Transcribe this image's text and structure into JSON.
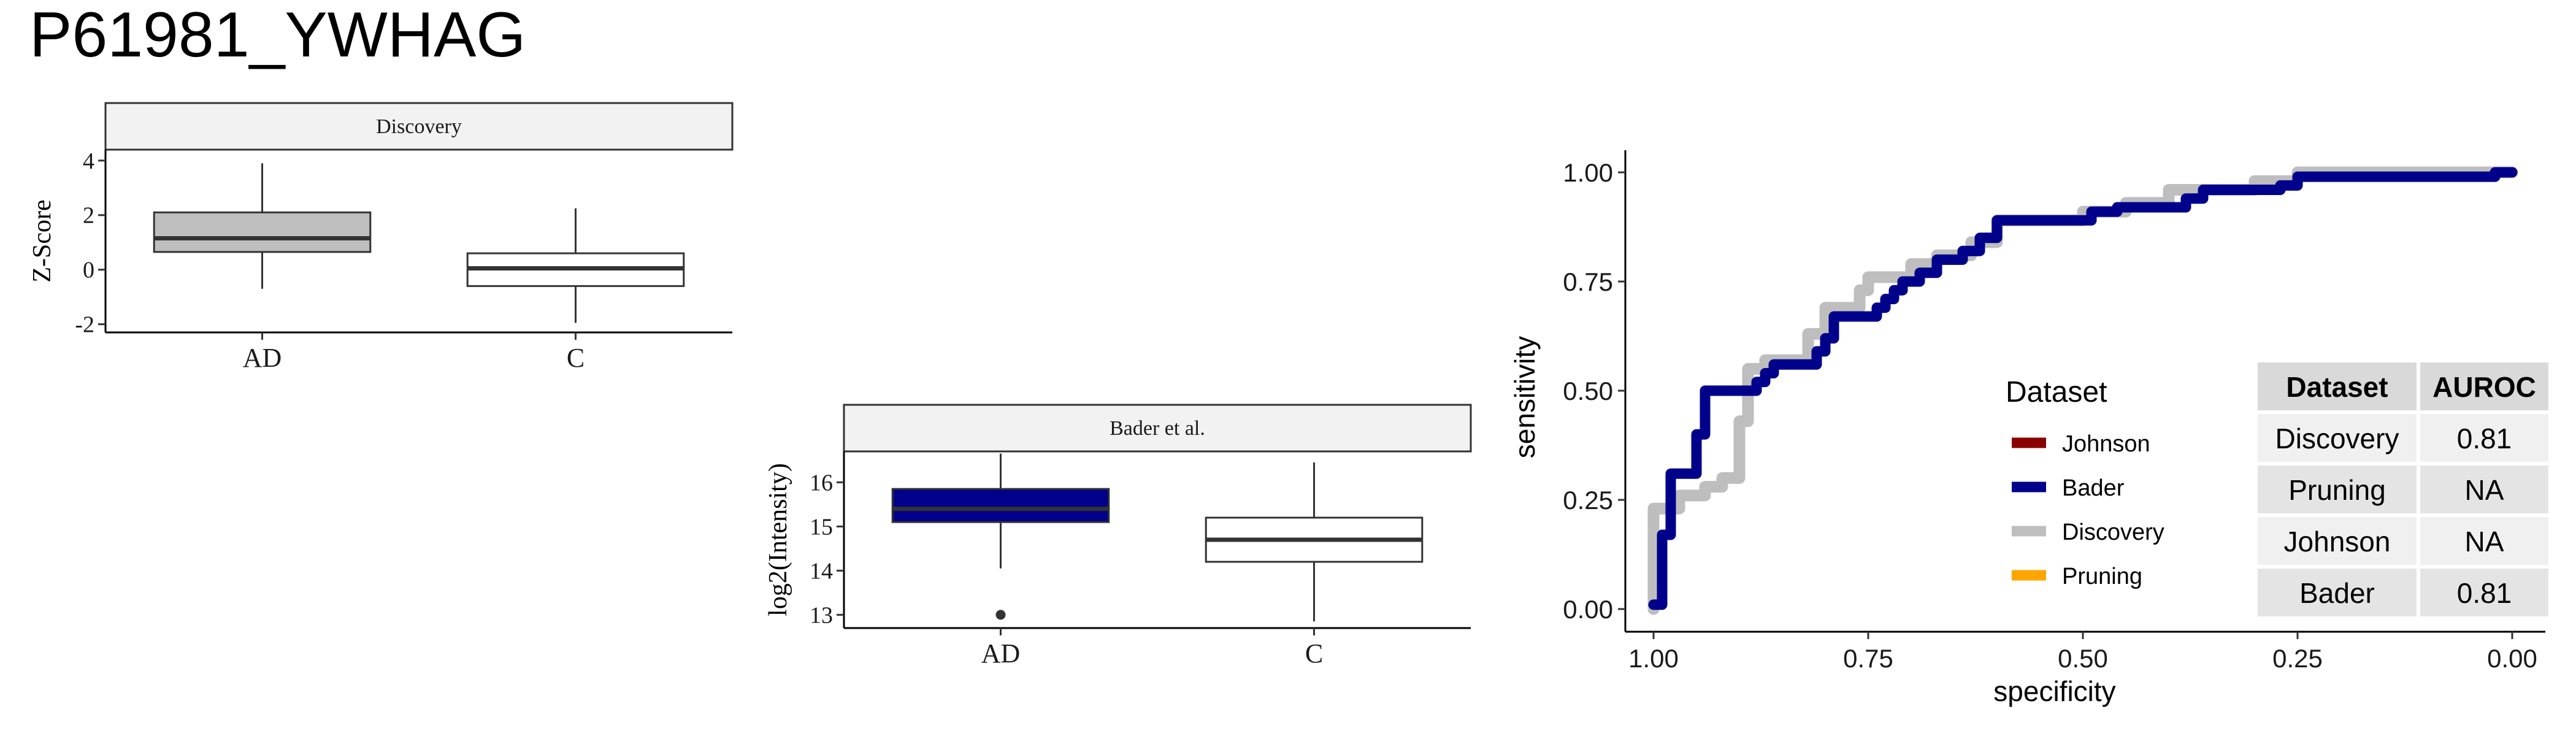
{
  "page_title": "P61981_YWHAG",
  "chart_data": [
    {
      "type": "box",
      "panel_label": "Discovery",
      "ylabel": "Z-Score",
      "categories": [
        "AD",
        "C"
      ],
      "yticks": [
        -2,
        0,
        2,
        4
      ],
      "ylim": [
        -2.3,
        4.4
      ],
      "boxes": [
        {
          "category": "AD",
          "whisker_low": -0.7,
          "q1": 0.65,
          "median": 1.15,
          "q3": 2.1,
          "whisker_high": 3.9,
          "outliers": [],
          "fill": "#bebebe"
        },
        {
          "category": "C",
          "whisker_low": -1.95,
          "q1": -0.6,
          "median": 0.05,
          "q3": 0.6,
          "whisker_high": 2.25,
          "outliers": [],
          "fill": "#ffffff"
        }
      ]
    },
    {
      "type": "box",
      "panel_label": "Bader et al.",
      "ylabel": "log2(Intensity)",
      "categories": [
        "AD",
        "C"
      ],
      "yticks": [
        13,
        14,
        15,
        16
      ],
      "ylim": [
        12.7,
        16.7
      ],
      "boxes": [
        {
          "category": "AD",
          "whisker_low": 14.05,
          "q1": 15.1,
          "median": 15.4,
          "q3": 15.85,
          "whisker_high": 16.65,
          "outliers": [
            13.0
          ],
          "fill": "#00008b"
        },
        {
          "category": "C",
          "whisker_low": 12.85,
          "q1": 14.2,
          "median": 14.7,
          "q3": 15.2,
          "whisker_high": 16.45,
          "outliers": [],
          "fill": "#ffffff"
        }
      ]
    },
    {
      "type": "line",
      "xlabel": "specificity",
      "ylabel": "sensitivity",
      "xlim": [
        1.0,
        0.0
      ],
      "ylim": [
        0.0,
        1.0
      ],
      "xticks": [
        1.0,
        0.75,
        0.5,
        0.25,
        0.0
      ],
      "yticks": [
        0.0,
        0.25,
        0.5,
        0.75,
        1.0
      ],
      "xtick_labels": [
        "1.00",
        "0.75",
        "0.50",
        "0.25",
        "0.00"
      ],
      "ytick_labels": [
        "0.00",
        "0.25",
        "0.50",
        "0.75",
        "1.00"
      ],
      "legend_title": "Dataset",
      "legend_position": "inside-bottom-right",
      "legend": [
        {
          "name": "Johnson",
          "color": "#8b0000"
        },
        {
          "name": "Bader",
          "color": "#00008b"
        },
        {
          "name": "Discovery",
          "color": "#bebebe"
        },
        {
          "name": "Pruning",
          "color": "#ffa500"
        }
      ],
      "series": [
        {
          "name": "Discovery",
          "color": "#bebebe",
          "points": [
            [
              1.0,
              0.0
            ],
            [
              1.0,
              0.23
            ],
            [
              0.97,
              0.23
            ],
            [
              0.97,
              0.26
            ],
            [
              0.94,
              0.26
            ],
            [
              0.94,
              0.28
            ],
            [
              0.92,
              0.28
            ],
            [
              0.92,
              0.3
            ],
            [
              0.9,
              0.3
            ],
            [
              0.9,
              0.43
            ],
            [
              0.89,
              0.43
            ],
            [
              0.89,
              0.55
            ],
            [
              0.87,
              0.55
            ],
            [
              0.87,
              0.57
            ],
            [
              0.82,
              0.57
            ],
            [
              0.82,
              0.63
            ],
            [
              0.8,
              0.63
            ],
            [
              0.8,
              0.69
            ],
            [
              0.76,
              0.69
            ],
            [
              0.76,
              0.73
            ],
            [
              0.75,
              0.73
            ],
            [
              0.75,
              0.76
            ],
            [
              0.7,
              0.76
            ],
            [
              0.7,
              0.79
            ],
            [
              0.67,
              0.79
            ],
            [
              0.67,
              0.81
            ],
            [
              0.63,
              0.81
            ],
            [
              0.63,
              0.84
            ],
            [
              0.6,
              0.84
            ],
            [
              0.6,
              0.89
            ],
            [
              0.5,
              0.89
            ],
            [
              0.5,
              0.91
            ],
            [
              0.45,
              0.91
            ],
            [
              0.45,
              0.93
            ],
            [
              0.4,
              0.93
            ],
            [
              0.4,
              0.96
            ],
            [
              0.3,
              0.96
            ],
            [
              0.3,
              0.98
            ],
            [
              0.25,
              0.98
            ],
            [
              0.25,
              1.0
            ],
            [
              0.0,
              1.0
            ]
          ]
        },
        {
          "name": "Bader",
          "color": "#00008b",
          "points": [
            [
              1.0,
              0.01
            ],
            [
              0.99,
              0.01
            ],
            [
              0.99,
              0.17
            ],
            [
              0.98,
              0.17
            ],
            [
              0.98,
              0.31
            ],
            [
              0.95,
              0.31
            ],
            [
              0.95,
              0.4
            ],
            [
              0.94,
              0.4
            ],
            [
              0.94,
              0.5
            ],
            [
              0.88,
              0.5
            ],
            [
              0.88,
              0.52
            ],
            [
              0.87,
              0.52
            ],
            [
              0.87,
              0.54
            ],
            [
              0.86,
              0.54
            ],
            [
              0.86,
              0.56
            ],
            [
              0.81,
              0.56
            ],
            [
              0.81,
              0.59
            ],
            [
              0.8,
              0.59
            ],
            [
              0.8,
              0.62
            ],
            [
              0.79,
              0.62
            ],
            [
              0.79,
              0.67
            ],
            [
              0.74,
              0.67
            ],
            [
              0.74,
              0.69
            ],
            [
              0.73,
              0.69
            ],
            [
              0.73,
              0.71
            ],
            [
              0.72,
              0.71
            ],
            [
              0.72,
              0.73
            ],
            [
              0.71,
              0.73
            ],
            [
              0.71,
              0.75
            ],
            [
              0.69,
              0.75
            ],
            [
              0.69,
              0.77
            ],
            [
              0.67,
              0.77
            ],
            [
              0.67,
              0.8
            ],
            [
              0.64,
              0.8
            ],
            [
              0.64,
              0.82
            ],
            [
              0.62,
              0.82
            ],
            [
              0.62,
              0.85
            ],
            [
              0.6,
              0.85
            ],
            [
              0.6,
              0.89
            ],
            [
              0.49,
              0.89
            ],
            [
              0.49,
              0.91
            ],
            [
              0.46,
              0.91
            ],
            [
              0.46,
              0.92
            ],
            [
              0.38,
              0.92
            ],
            [
              0.38,
              0.94
            ],
            [
              0.36,
              0.94
            ],
            [
              0.36,
              0.96
            ],
            [
              0.27,
              0.96
            ],
            [
              0.27,
              0.97
            ],
            [
              0.25,
              0.97
            ],
            [
              0.25,
              0.99
            ],
            [
              0.02,
              0.99
            ],
            [
              0.02,
              1.0
            ],
            [
              0.0,
              1.0
            ]
          ]
        }
      ],
      "table": {
        "headers": [
          "Dataset",
          "AUROC"
        ],
        "rows": [
          [
            "Discovery",
            "0.81"
          ],
          [
            "Pruning",
            "NA"
          ],
          [
            "Johnson",
            "NA"
          ],
          [
            "Bader",
            "0.81"
          ]
        ]
      }
    }
  ]
}
